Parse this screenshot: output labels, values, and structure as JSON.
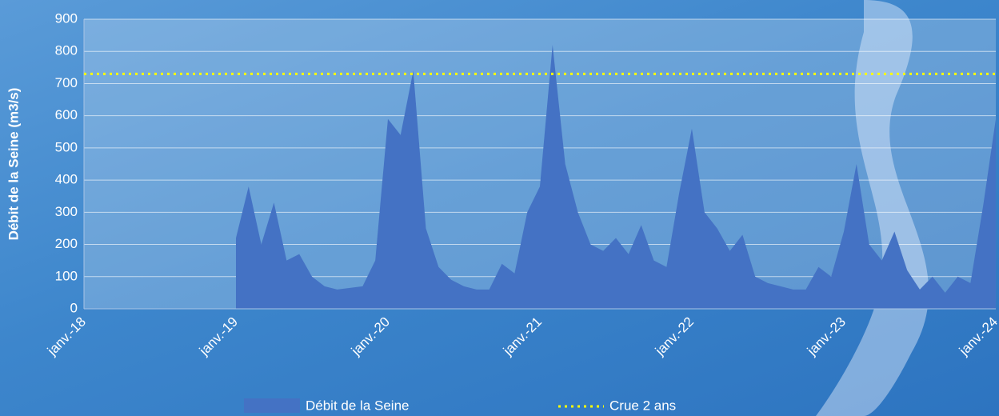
{
  "chart_data": {
    "type": "area",
    "y_label": "Débit de la Seine (m3/s)",
    "categories": [
      "janv.-18",
      null,
      null,
      null,
      null,
      null,
      null,
      null,
      null,
      null,
      null,
      null,
      "janv.-19",
      null,
      null,
      null,
      null,
      null,
      null,
      null,
      null,
      null,
      null,
      null,
      "janv.-20",
      null,
      null,
      null,
      null,
      null,
      null,
      null,
      null,
      null,
      null,
      null,
      "janv.-21",
      null,
      null,
      null,
      null,
      null,
      null,
      null,
      null,
      null,
      null,
      null,
      "janv.-22",
      null,
      null,
      null,
      null,
      null,
      null,
      null,
      null,
      null,
      null,
      null,
      "janv.-23",
      null,
      null,
      null,
      null,
      null,
      null,
      null,
      null,
      null,
      null,
      null,
      "janv.-24"
    ],
    "series": [
      {
        "name": "Débit de la Seine",
        "color": "#4472c4",
        "values": [
          null,
          null,
          null,
          null,
          null,
          null,
          null,
          null,
          null,
          null,
          null,
          null,
          220,
          380,
          200,
          330,
          150,
          170,
          100,
          70,
          60,
          65,
          70,
          150,
          590,
          540,
          740,
          250,
          130,
          90,
          70,
          60,
          60,
          140,
          110,
          300,
          380,
          820,
          450,
          300,
          200,
          180,
          220,
          170,
          260,
          150,
          130,
          360,
          560,
          300,
          250,
          180,
          230,
          100,
          80,
          70,
          60,
          60,
          130,
          100,
          240,
          450,
          200,
          150,
          240,
          120,
          60,
          100,
          50,
          100,
          80,
          320,
          590
        ]
      }
    ],
    "threshold": {
      "name": "Crue 2 ans",
      "color": "#ffff00",
      "value": 730
    },
    "ylim": [
      0,
      900
    ],
    "yticks": [
      0,
      100,
      200,
      300,
      400,
      500,
      600,
      700,
      800,
      900
    ],
    "grid": true
  }
}
